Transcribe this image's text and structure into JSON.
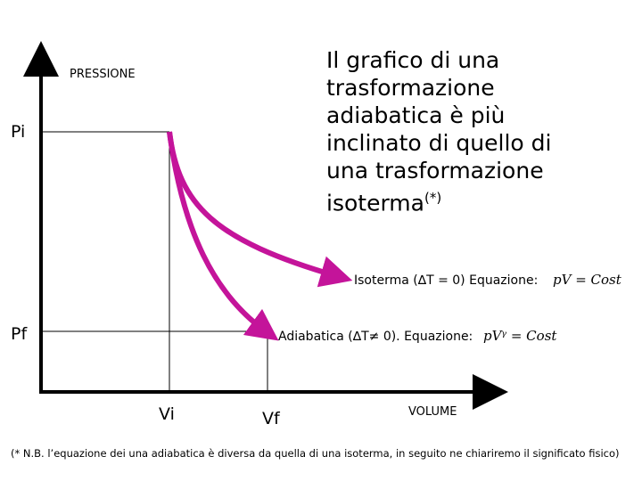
{
  "title": "Il grafico di una trasformazione adiabatica è più inclinato di quello di una trasformazione isoterma",
  "title_note": "(*)",
  "axis": {
    "y_label": "PRESSIONE",
    "x_label": "VOLUME"
  },
  "ticks": {
    "pi": "Pi",
    "pf": "Pf",
    "vi": "Vi",
    "vf": "Vf"
  },
  "isotherm": {
    "label": "Isoterma (∆T = 0) Equazione:",
    "formula": "pV = Cost"
  },
  "adiabatic": {
    "label": "Adiabatica (∆T≠ 0). Equazione:",
    "formula": "pVᵞ = Cost"
  },
  "footnote": "(* N.B. l’equazione dei una adiabatica è diversa da quella di una isoterma, in seguito ne chiariremo il significato fisico)",
  "colors": {
    "curve": "#c4149a",
    "axis": "#000000"
  }
}
